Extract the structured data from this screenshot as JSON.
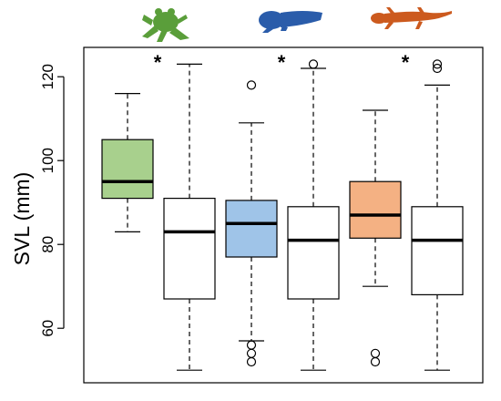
{
  "chart_data": {
    "type": "box",
    "ylabel": "SVL (mm)",
    "ylim": [
      47,
      127
    ],
    "yticks": [
      60,
      80,
      100,
      120
    ],
    "grid": false,
    "group_icons": [
      {
        "icon": "frog-icon",
        "color": "#5a9e3a"
      },
      {
        "icon": "tadpole-icon",
        "color": "#2a5caa"
      },
      {
        "icon": "salamander-icon",
        "color": "#cc5a1e"
      }
    ],
    "significance_marker": "*",
    "boxes": [
      {
        "group": 0,
        "fill": "#a8d08d",
        "whisker_low": 83,
        "q1": 91,
        "median": 95,
        "q3": 105,
        "whisker_high": 116,
        "outliers": []
      },
      {
        "group": 0,
        "fill": "#ffffff",
        "whisker_low": 50,
        "q1": 67,
        "median": 83,
        "q3": 91,
        "whisker_high": 123,
        "outliers": []
      },
      {
        "group": 1,
        "fill": "#9fc4e8",
        "whisker_low": 57,
        "q1": 77,
        "median": 85,
        "q3": 90.5,
        "whisker_high": 109,
        "outliers": [
          118,
          56,
          54,
          52
        ]
      },
      {
        "group": 1,
        "fill": "#ffffff",
        "whisker_low": 50,
        "q1": 67,
        "median": 81,
        "q3": 89,
        "whisker_high": 122,
        "outliers": [
          123
        ]
      },
      {
        "group": 2,
        "fill": "#f4b183",
        "whisker_low": 70,
        "q1": 81.5,
        "median": 87,
        "q3": 95,
        "whisker_high": 112,
        "outliers": [
          54,
          52
        ]
      },
      {
        "group": 2,
        "fill": "#ffffff",
        "whisker_low": 50,
        "q1": 68,
        "median": 81,
        "q3": 89,
        "whisker_high": 118,
        "outliers": [
          123,
          122
        ]
      }
    ]
  }
}
